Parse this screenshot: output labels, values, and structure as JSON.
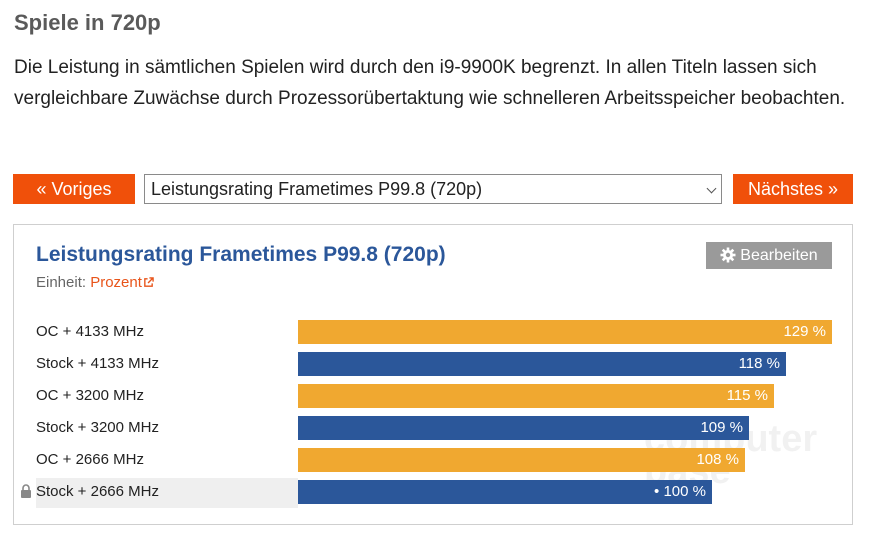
{
  "section": {
    "title": "Spiele in 720p",
    "intro": "Die Leistung in sämtlichen Spielen wird durch den i9-9900K begrenzt. In allen Titeln lassen sich vergleichbare Zuwächse durch Prozessorübertaktung wie schnelleren Arbeitsspeicher beobachten."
  },
  "nav": {
    "prev_label": "« Voriges",
    "next_label": "Nächstes »",
    "selected": "Leistungsrating Frametimes P99.8 (720p)"
  },
  "panel": {
    "unit_prefix": "Einheit:",
    "unit_link": "Prozent",
    "edit_label": "Bearbeiten",
    "watermark": "computer base"
  },
  "colors": {
    "accent": "#f0500a",
    "oc": "#f0a830",
    "stock": "#2b579a",
    "title": "#2b579a"
  },
  "chart_data": {
    "type": "bar",
    "orientation": "horizontal",
    "title": "Leistungsrating Frametimes P99.8 (720p)",
    "unit": "Prozent",
    "xlim": [
      0,
      129
    ],
    "categories": [
      "OC + 4133 MHz",
      "Stock + 4133 MHz",
      "OC + 3200 MHz",
      "Stock + 3200 MHz",
      "OC + 2666 MHz",
      "Stock + 2666 MHz"
    ],
    "values": [
      129,
      118,
      115,
      109,
      108,
      100
    ],
    "value_labels": [
      "129 %",
      "118 %",
      "115 %",
      "109 %",
      "108 %",
      "• 100 %"
    ],
    "bar_colors": [
      "#f0a830",
      "#2b579a",
      "#f0a830",
      "#2b579a",
      "#f0a830",
      "#2b579a"
    ],
    "baseline_index": 5,
    "grid": false,
    "legend": "none"
  }
}
